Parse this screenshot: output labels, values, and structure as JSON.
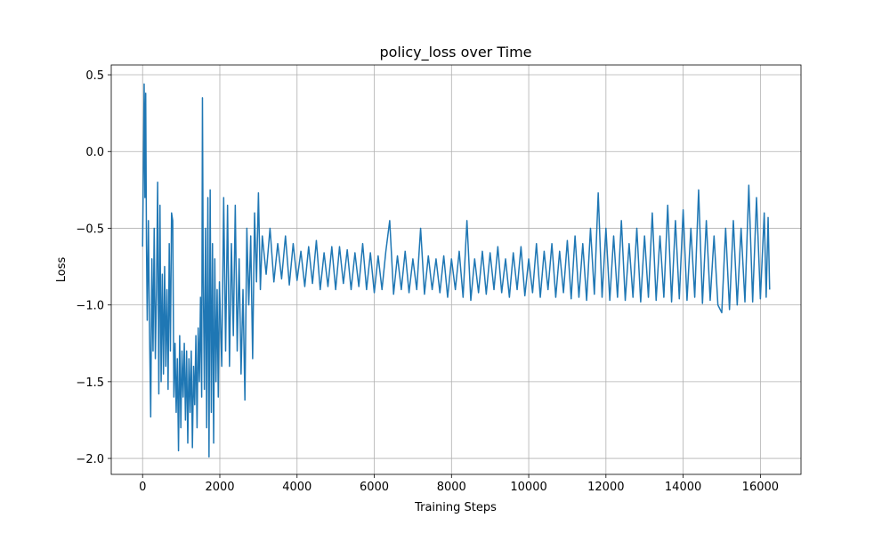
{
  "chart_data": {
    "type": "line",
    "title": "policy_loss over Time",
    "xlabel": "Training Steps",
    "ylabel": "Loss",
    "color": "#1f77b4",
    "grid": true,
    "xlim": [
      -812,
      17052
    ],
    "ylim": [
      -2.104,
      0.564
    ],
    "xticks": [
      0,
      2000,
      4000,
      6000,
      8000,
      10000,
      12000,
      14000,
      16000
    ],
    "yticks": [
      {
        "value": -2.0,
        "label": "−2.0"
      },
      {
        "value": -1.5,
        "label": "−1.5"
      },
      {
        "value": -1.0,
        "label": "−1.0"
      },
      {
        "value": -0.5,
        "label": "−0.5"
      },
      {
        "value": 0.0,
        "label": "0.0"
      },
      0.5
    ],
    "x": [
      0,
      20,
      40,
      60,
      80,
      100,
      120,
      150,
      180,
      210,
      240,
      270,
      300,
      330,
      360,
      390,
      420,
      450,
      480,
      510,
      540,
      570,
      600,
      630,
      660,
      690,
      720,
      750,
      780,
      810,
      840,
      870,
      900,
      930,
      960,
      990,
      1020,
      1050,
      1080,
      1110,
      1140,
      1170,
      1200,
      1230,
      1260,
      1290,
      1320,
      1350,
      1380,
      1410,
      1440,
      1470,
      1500,
      1530,
      1550,
      1570,
      1600,
      1630,
      1660,
      1690,
      1720,
      1750,
      1780,
      1810,
      1840,
      1870,
      1900,
      1930,
      1960,
      1990,
      2050,
      2100,
      2150,
      2200,
      2250,
      2300,
      2350,
      2400,
      2450,
      2500,
      2550,
      2600,
      2650,
      2700,
      2750,
      2800,
      2850,
      2900,
      2950,
      3000,
      3050,
      3100,
      3200,
      3300,
      3400,
      3500,
      3600,
      3700,
      3800,
      3900,
      4000,
      4100,
      4200,
      4300,
      4400,
      4500,
      4600,
      4700,
      4800,
      4900,
      5000,
      5100,
      5200,
      5300,
      5400,
      5500,
      5600,
      5700,
      5800,
      5900,
      6000,
      6100,
      6200,
      6300,
      6400,
      6500,
      6600,
      6700,
      6800,
      6900,
      7000,
      7100,
      7200,
      7300,
      7400,
      7500,
      7600,
      7700,
      7800,
      7900,
      8000,
      8100,
      8200,
      8300,
      8400,
      8500,
      8600,
      8700,
      8800,
      8900,
      9000,
      9100,
      9200,
      9300,
      9400,
      9500,
      9600,
      9700,
      9800,
      9900,
      10000,
      10100,
      10200,
      10300,
      10400,
      10500,
      10600,
      10700,
      10800,
      10900,
      11000,
      11100,
      11200,
      11300,
      11400,
      11500,
      11600,
      11700,
      11800,
      11900,
      12000,
      12100,
      12200,
      12300,
      12400,
      12500,
      12600,
      12700,
      12800,
      12900,
      13000,
      13100,
      13200,
      13300,
      13400,
      13500,
      13600,
      13700,
      13800,
      13900,
      14000,
      14100,
      14200,
      14300,
      14400,
      14500,
      14600,
      14700,
      14800,
      14900,
      15000,
      15100,
      15200,
      15300,
      15400,
      15500,
      15600,
      15700,
      15800,
      15900,
      16000,
      16100,
      16150,
      16200,
      16240
    ],
    "values": [
      -0.62,
      -0.12,
      0.44,
      -0.3,
      0.38,
      -0.6,
      -1.1,
      -0.45,
      -1.18,
      -1.73,
      -0.7,
      -1.3,
      -0.5,
      -1.35,
      -0.9,
      -0.2,
      -1.58,
      -0.35,
      -1.5,
      -0.8,
      -1.45,
      -0.75,
      -1.4,
      -0.9,
      -1.55,
      -0.6,
      -1.3,
      -0.4,
      -0.45,
      -1.6,
      -1.25,
      -1.7,
      -1.35,
      -1.95,
      -1.2,
      -1.8,
      -1.3,
      -1.6,
      -1.25,
      -1.75,
      -1.3,
      -1.9,
      -1.35,
      -1.7,
      -1.3,
      -1.93,
      -1.4,
      -1.65,
      -1.2,
      -1.8,
      -1.15,
      -1.5,
      -0.95,
      -1.6,
      0.35,
      -0.8,
      -1.55,
      -0.5,
      -1.8,
      -0.3,
      -1.99,
      -0.25,
      -1.7,
      -0.6,
      -1.9,
      -0.7,
      -1.5,
      -0.9,
      -1.6,
      -0.85,
      -1.4,
      -0.3,
      -1.3,
      -0.35,
      -1.4,
      -0.6,
      -1.2,
      -0.35,
      -1.3,
      -0.7,
      -1.45,
      -0.9,
      -1.62,
      -0.5,
      -1.0,
      -0.55,
      -1.35,
      -0.4,
      -0.85,
      -0.27,
      -0.9,
      -0.55,
      -0.8,
      -0.5,
      -0.85,
      -0.6,
      -0.83,
      -0.55,
      -0.87,
      -0.6,
      -0.84,
      -0.65,
      -0.88,
      -0.62,
      -0.86,
      -0.58,
      -0.9,
      -0.66,
      -0.88,
      -0.62,
      -0.9,
      -0.62,
      -0.86,
      -0.64,
      -0.9,
      -0.66,
      -0.88,
      -0.6,
      -0.9,
      -0.66,
      -0.92,
      -0.68,
      -0.9,
      -0.65,
      -0.45,
      -0.93,
      -0.68,
      -0.9,
      -0.65,
      -0.92,
      -0.7,
      -0.9,
      -0.5,
      -0.93,
      -0.68,
      -0.9,
      -0.7,
      -0.92,
      -0.68,
      -0.95,
      -0.7,
      -0.9,
      -0.65,
      -0.95,
      -0.45,
      -0.97,
      -0.7,
      -0.92,
      -0.65,
      -0.93,
      -0.66,
      -0.9,
      -0.62,
      -0.92,
      -0.7,
      -0.95,
      -0.66,
      -0.9,
      -0.62,
      -0.94,
      -0.7,
      -0.92,
      -0.6,
      -0.95,
      -0.65,
      -0.9,
      -0.6,
      -0.95,
      -0.65,
      -0.92,
      -0.58,
      -0.96,
      -0.55,
      -0.95,
      -0.6,
      -0.97,
      -0.5,
      -0.93,
      -0.27,
      -0.95,
      -0.5,
      -0.97,
      -0.55,
      -0.95,
      -0.45,
      -0.97,
      -0.6,
      -0.95,
      -0.5,
      -0.98,
      -0.55,
      -0.95,
      -0.4,
      -0.97,
      -0.55,
      -0.95,
      -0.35,
      -0.98,
      -0.45,
      -0.96,
      -0.38,
      -0.97,
      -0.5,
      -0.95,
      -0.25,
      -0.99,
      -0.45,
      -0.97,
      -0.55,
      -1.0,
      -1.05,
      -0.5,
      -1.03,
      -0.45,
      -1.0,
      -0.5,
      -0.98,
      -0.22,
      -0.98,
      -0.3,
      -0.96,
      -0.4,
      -0.95,
      -0.43,
      -0.9
    ]
  }
}
